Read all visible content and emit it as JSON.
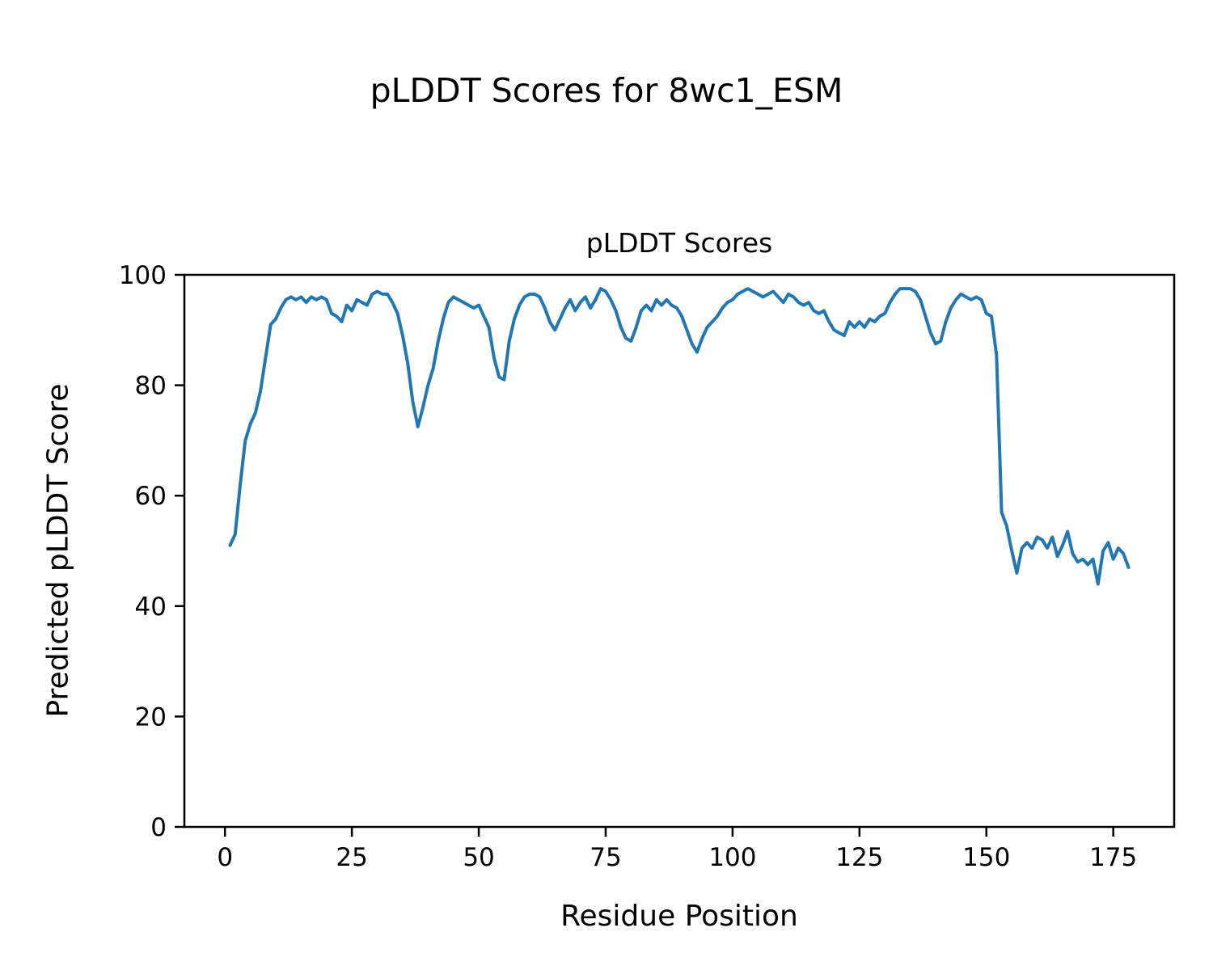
{
  "page": {
    "background": "#ffffff",
    "figure_title": "pLDDT Scores for 8wc1_ESM"
  },
  "chart_data": {
    "type": "line",
    "title": "pLDDT Scores",
    "xlabel": "Residue Position",
    "ylabel": "Predicted pLDDT Score",
    "xlim": [
      -8,
      187
    ],
    "ylim": [
      0,
      100
    ],
    "xticks": [
      0,
      25,
      50,
      75,
      100,
      125,
      150,
      175
    ],
    "yticks": [
      0,
      20,
      40,
      60,
      80,
      100
    ],
    "grid": false,
    "legend": "none",
    "line_color": "#1f77b4",
    "line_width": 4,
    "axis_color": "#000000",
    "x": [
      1,
      2,
      3,
      4,
      5,
      6,
      7,
      8,
      9,
      10,
      11,
      12,
      13,
      14,
      15,
      16,
      17,
      18,
      19,
      20,
      21,
      22,
      23,
      24,
      25,
      26,
      27,
      28,
      29,
      30,
      31,
      32,
      33,
      34,
      35,
      36,
      37,
      38,
      39,
      40,
      41,
      42,
      43,
      44,
      45,
      46,
      47,
      48,
      49,
      50,
      51,
      52,
      53,
      54,
      55,
      56,
      57,
      58,
      59,
      60,
      61,
      62,
      63,
      64,
      65,
      66,
      67,
      68,
      69,
      70,
      71,
      72,
      73,
      74,
      75,
      76,
      77,
      78,
      79,
      80,
      81,
      82,
      83,
      84,
      85,
      86,
      87,
      88,
      89,
      90,
      91,
      92,
      93,
      94,
      95,
      96,
      97,
      98,
      99,
      100,
      101,
      102,
      103,
      104,
      105,
      106,
      107,
      108,
      109,
      110,
      111,
      112,
      113,
      114,
      115,
      116,
      117,
      118,
      119,
      120,
      121,
      122,
      123,
      124,
      125,
      126,
      127,
      128,
      129,
      130,
      131,
      132,
      133,
      134,
      135,
      136,
      137,
      138,
      139,
      140,
      141,
      142,
      143,
      144,
      145,
      146,
      147,
      148,
      149,
      150,
      151,
      152,
      153,
      154,
      155,
      156,
      157,
      158,
      159,
      160,
      161,
      162,
      163,
      164,
      165,
      166,
      167,
      168,
      169,
      170,
      171,
      172,
      173,
      174,
      175,
      176,
      177,
      178
    ],
    "y": [
      51,
      53,
      62,
      70,
      73,
      75,
      79,
      85,
      91,
      92,
      94,
      95.5,
      96,
      95.5,
      96,
      95,
      96,
      95.5,
      96,
      95.5,
      93,
      92.5,
      91.5,
      94.5,
      93.5,
      95.5,
      95,
      94.5,
      96.5,
      97,
      96.5,
      96.5,
      95,
      93,
      89,
      84,
      77,
      72.5,
      76,
      80,
      83,
      88,
      92,
      95,
      96,
      95.5,
      95,
      94.5,
      94,
      94.5,
      92.5,
      90.5,
      85,
      81.5,
      81,
      88,
      92,
      94.5,
      96,
      96.5,
      96.5,
      96,
      94,
      91.5,
      90,
      92,
      94,
      95.5,
      93.5,
      95,
      96,
      94,
      95.5,
      97.5,
      97,
      95.5,
      93.5,
      90.5,
      88.5,
      88,
      90.5,
      93.5,
      94.5,
      93.5,
      95.5,
      94.5,
      95.5,
      94.5,
      94,
      92.5,
      90,
      87.5,
      86,
      88.5,
      90.5,
      91.5,
      92.5,
      94,
      95,
      95.5,
      96.5,
      97,
      97.5,
      97,
      96.5,
      96,
      96.5,
      97,
      96,
      95,
      96.5,
      96,
      95,
      94.5,
      95,
      93.5,
      93,
      93.5,
      91.5,
      90,
      89.5,
      89,
      91.5,
      90.5,
      91.5,
      90.5,
      92,
      91.5,
      92.5,
      93,
      95,
      96.5,
      97.5,
      97.5,
      97.5,
      97,
      95.5,
      92.5,
      89.5,
      87.5,
      88,
      91.5,
      94,
      95.5,
      96.5,
      96,
      95.5,
      96,
      95.5,
      93,
      92.5,
      85.5,
      57,
      54.5,
      50,
      46,
      50.5,
      51.5,
      50.5,
      52.5,
      52,
      50.5,
      52.5,
      49,
      51,
      53.5,
      49.5,
      48,
      48.5,
      47.5,
      48.5,
      44,
      50,
      51.5,
      48.5,
      50.5,
      49.5,
      47
    ]
  }
}
